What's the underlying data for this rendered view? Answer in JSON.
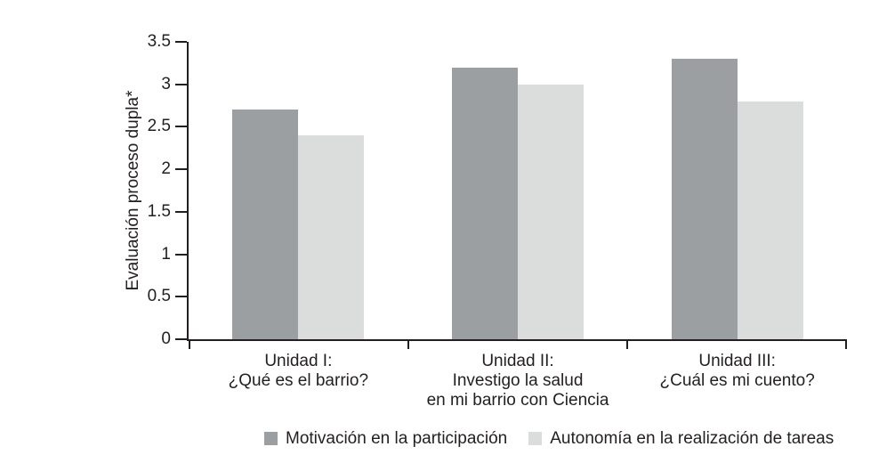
{
  "chart_data": {
    "type": "bar",
    "title": "",
    "ylabel": "Evaluación proceso dupla*",
    "xlabel": "",
    "ylim": [
      0,
      3.5
    ],
    "yticks": [
      0,
      0.5,
      1,
      1.5,
      2,
      2.5,
      3,
      3.5
    ],
    "ytick_labels": [
      "0",
      "0.5",
      "1",
      "1.5",
      "2",
      "2.5",
      "3",
      "3.5"
    ],
    "categories": [
      "Unidad I:\n¿Qué es el barrio?",
      "Unidad II:\nInvestigo la salud\nen mi barrio con Ciencia",
      "Unidad III:\n¿Cuál es mi cuento?"
    ],
    "series": [
      {
        "name": "Motivación en la participación",
        "color": "#9c9fa2",
        "values": [
          2.7,
          3.2,
          3.3
        ]
      },
      {
        "name": "Autonomía en la realización de tareas",
        "color": "#dbdddd",
        "values": [
          2.4,
          3.0,
          2.8
        ]
      }
    ],
    "legend_position": "bottom",
    "grid": false,
    "axis_color": "#231f20",
    "background_color": "#ffffff"
  }
}
